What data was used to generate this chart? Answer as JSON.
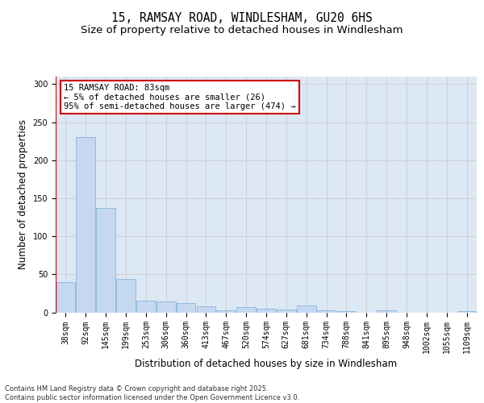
{
  "title_line1": "15, RAMSAY ROAD, WINDLESHAM, GU20 6HS",
  "title_line2": "Size of property relative to detached houses in Windlesham",
  "xlabel": "Distribution of detached houses by size in Windlesham",
  "ylabel": "Number of detached properties",
  "categories": [
    "38sqm",
    "92sqm",
    "145sqm",
    "199sqm",
    "253sqm",
    "306sqm",
    "360sqm",
    "413sqm",
    "467sqm",
    "520sqm",
    "574sqm",
    "627sqm",
    "681sqm",
    "734sqm",
    "788sqm",
    "841sqm",
    "895sqm",
    "948sqm",
    "1002sqm",
    "1055sqm",
    "1109sqm"
  ],
  "values": [
    40,
    230,
    137,
    44,
    15,
    14,
    12,
    8,
    3,
    7,
    5,
    4,
    9,
    3,
    2,
    0,
    3,
    0,
    0,
    0,
    2
  ],
  "bar_color": "#c5d8f0",
  "bar_edge_color": "#7bafd4",
  "grid_color": "#cccccc",
  "background_color": "#dde8f5",
  "vline_color": "#cc0000",
  "annotation_text": "15 RAMSAY ROAD: 83sqm\n← 5% of detached houses are smaller (26)\n95% of semi-detached houses are larger (474) →",
  "annotation_box_color": "#cc0000",
  "ylim": [
    0,
    310
  ],
  "yticks": [
    0,
    50,
    100,
    150,
    200,
    250,
    300
  ],
  "footer": "Contains HM Land Registry data © Crown copyright and database right 2025.\nContains public sector information licensed under the Open Government Licence v3.0.",
  "title_fontsize": 10.5,
  "subtitle_fontsize": 9.5,
  "axis_label_fontsize": 8.5,
  "tick_fontsize": 7,
  "annotation_fontsize": 7.5,
  "footer_fontsize": 6
}
